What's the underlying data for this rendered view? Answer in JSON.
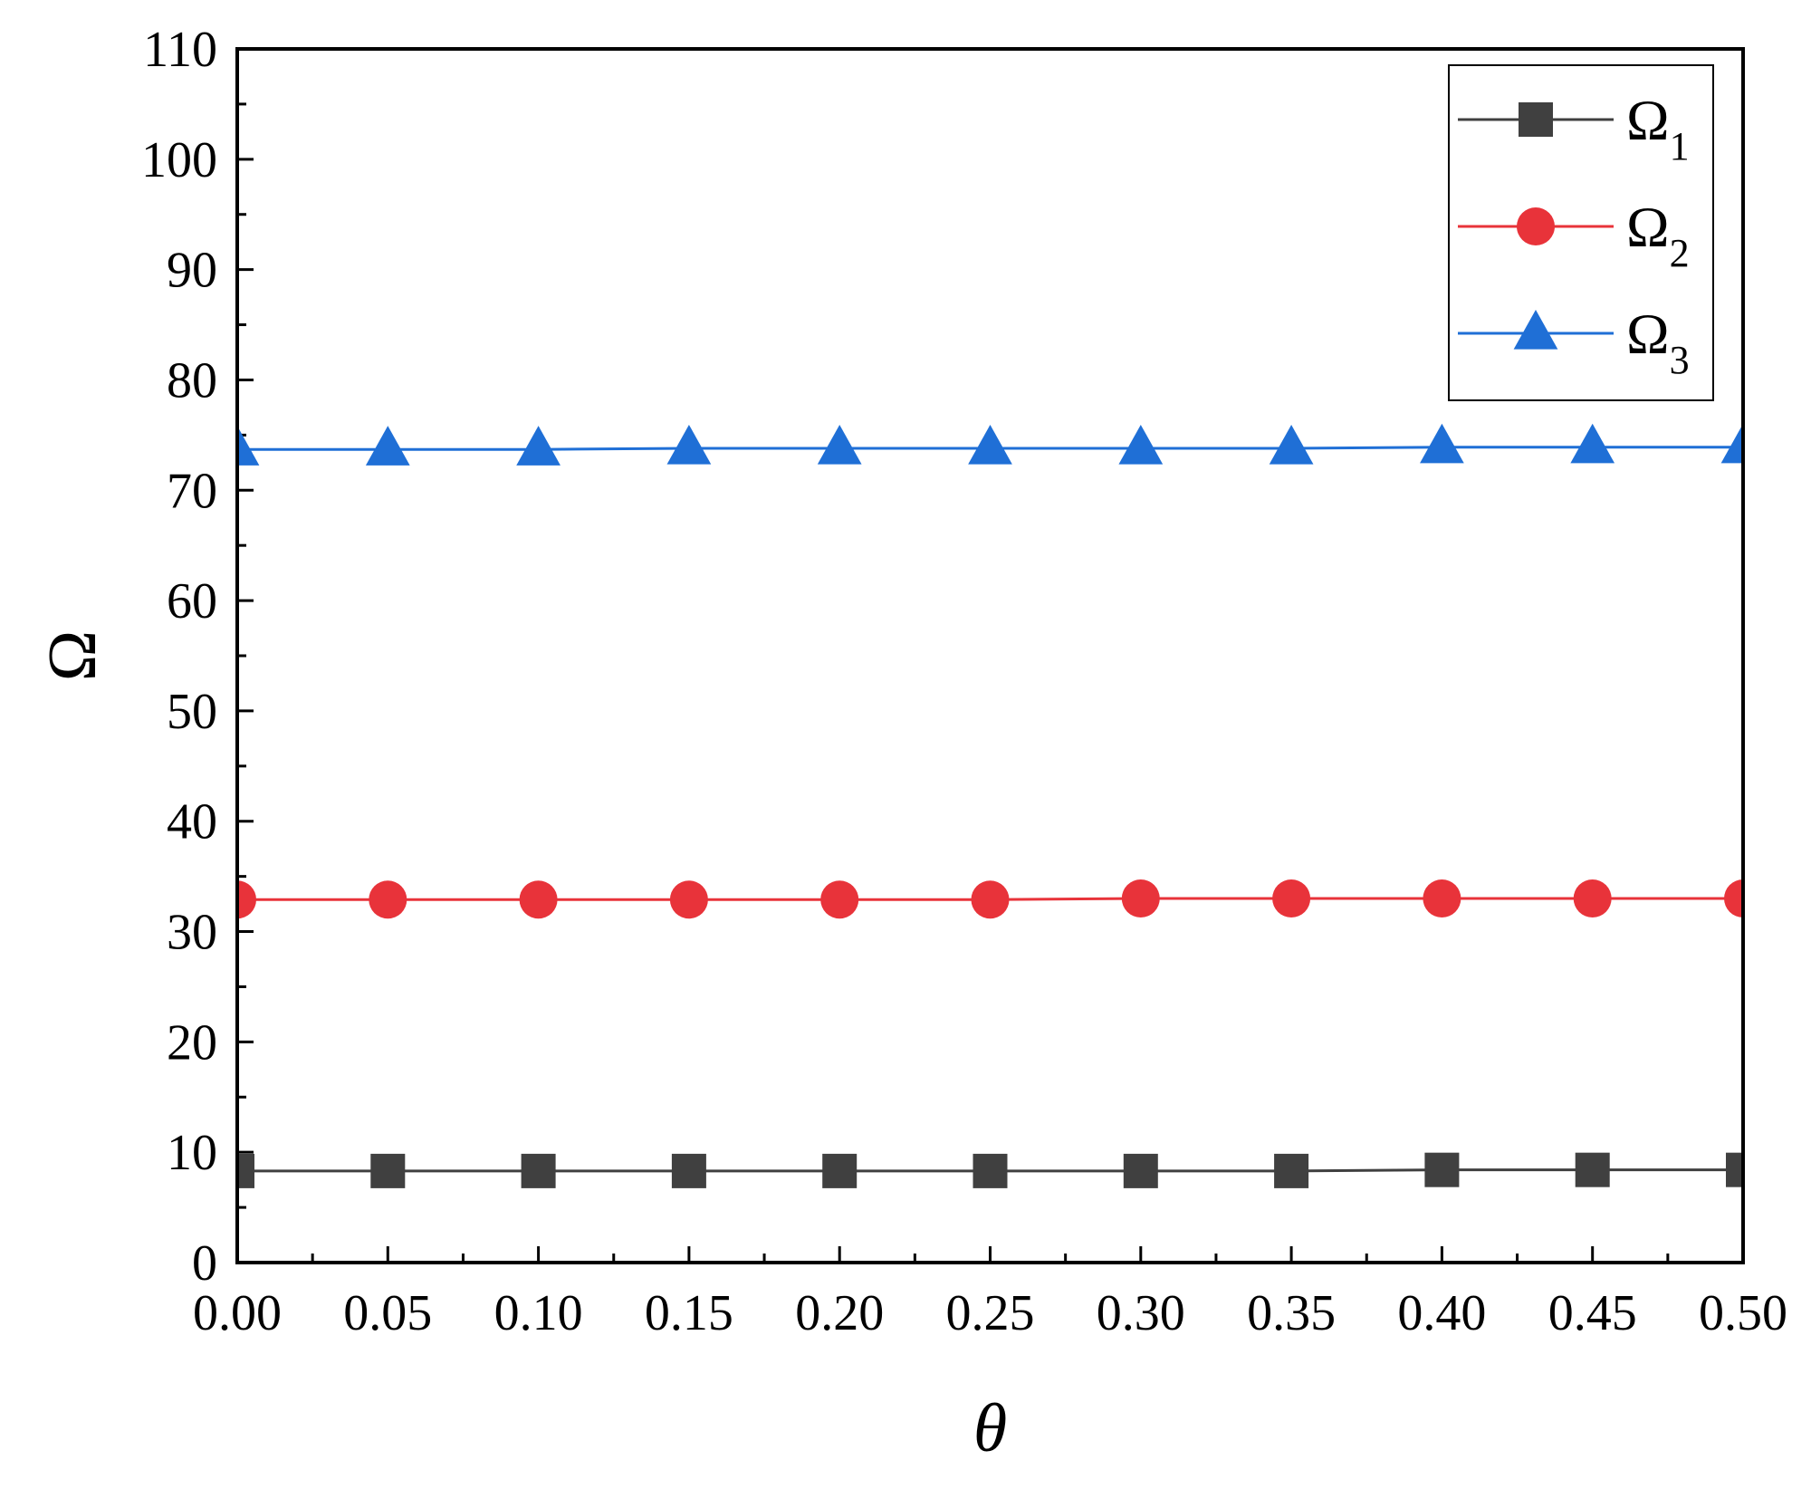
{
  "chart_data": {
    "type": "line",
    "title": "",
    "xlabel": "θ",
    "ylabel": "Ω",
    "xlim": [
      0,
      0.5
    ],
    "ylim": [
      0,
      110
    ],
    "x": [
      0.0,
      0.05,
      0.1,
      0.15,
      0.2,
      0.25,
      0.3,
      0.35,
      0.4,
      0.45,
      0.5
    ],
    "x_tick_labels": [
      "0.00",
      "0.05",
      "0.10",
      "0.15",
      "0.20",
      "0.25",
      "0.30",
      "0.35",
      "0.40",
      "0.45",
      "0.50"
    ],
    "y_ticks": [
      0,
      10,
      20,
      30,
      40,
      50,
      60,
      70,
      80,
      90,
      100,
      110
    ],
    "y_tick_labels": [
      "0",
      "10",
      "20",
      "30",
      "40",
      "50",
      "60",
      "70",
      "80",
      "90",
      "100",
      "110"
    ],
    "legend_position": "top-right",
    "grid": false,
    "series": [
      {
        "name": "Ω1",
        "symbol": "Ω",
        "subscript": "1",
        "marker": "square",
        "color": "#404040",
        "values": [
          8.3,
          8.3,
          8.3,
          8.3,
          8.3,
          8.3,
          8.3,
          8.3,
          8.4,
          8.4,
          8.4
        ]
      },
      {
        "name": "Ω2",
        "symbol": "Ω",
        "subscript": "2",
        "marker": "circle",
        "color": "#e8333a",
        "values": [
          32.9,
          32.9,
          32.9,
          32.9,
          32.9,
          32.9,
          33.0,
          33.0,
          33.0,
          33.0,
          33.0
        ]
      },
      {
        "name": "Ω3",
        "symbol": "Ω",
        "subscript": "3",
        "marker": "triangle",
        "color": "#1f6fd6",
        "values": [
          73.7,
          73.7,
          73.7,
          73.8,
          73.8,
          73.8,
          73.8,
          73.8,
          73.9,
          73.9,
          73.9
        ]
      }
    ]
  }
}
